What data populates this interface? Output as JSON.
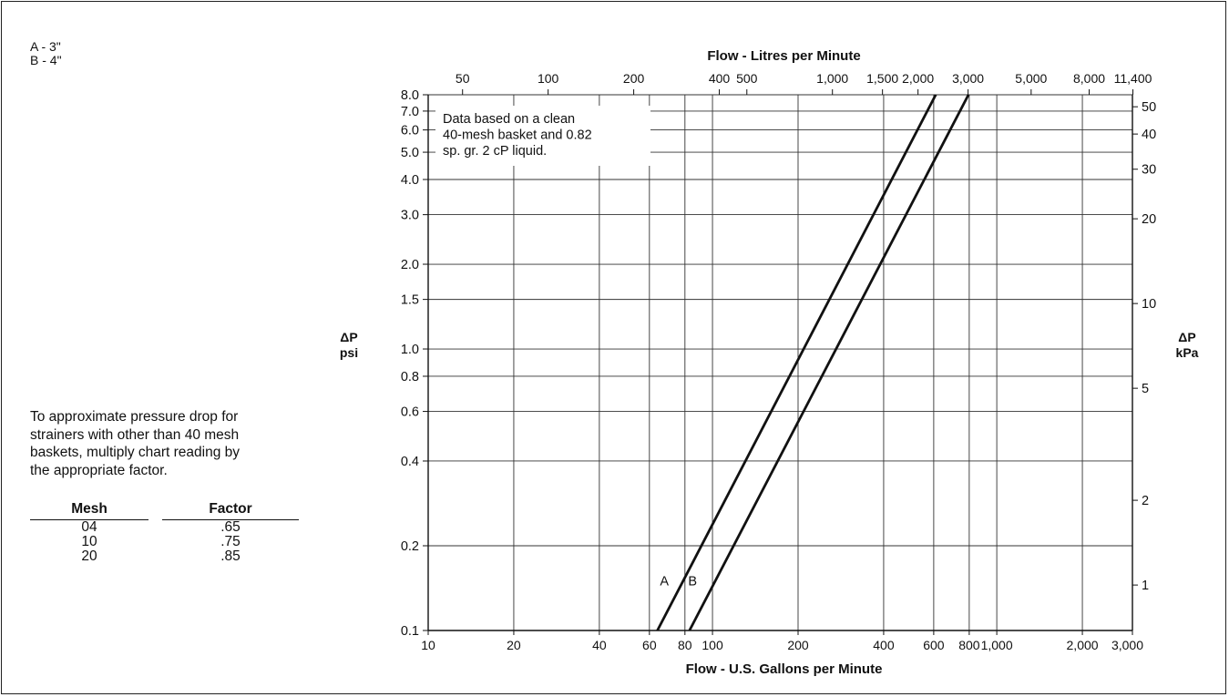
{
  "legend": {
    "items": [
      "A - 3\"",
      "B - 4\""
    ]
  },
  "note": {
    "text_lines": [
      "To approximate pressure drop for",
      "strainers with other than 40 mesh",
      "baskets, multiply chart reading by",
      "the appropriate factor."
    ]
  },
  "factor_table": {
    "headers": [
      "Mesh",
      "Factor"
    ],
    "rows": [
      [
        "04",
        ".65"
      ],
      [
        "10",
        ".75"
      ],
      [
        "20",
        ".85"
      ]
    ]
  },
  "chart_data": {
    "type": "line",
    "title": "",
    "xlabel_bottom": "Flow - U.S. Gallons per Minute",
    "xlabel_top": "Flow - Litres per Minute",
    "ylabel_left": [
      "ΔP",
      "psi"
    ],
    "ylabel_right": [
      "ΔP",
      "kPa"
    ],
    "x_scale": "log",
    "y_scale": "log",
    "xlim": [
      10,
      3000
    ],
    "ylim": [
      0.1,
      8.0
    ],
    "x_ticks": [
      10,
      20,
      40,
      60,
      80,
      100,
      200,
      400,
      600,
      800,
      1000,
      2000,
      3000
    ],
    "x_tick_labels": [
      "10",
      "20",
      "40",
      "60",
      "80",
      "100",
      "200",
      "400",
      "600",
      "800",
      "1,000",
      "2,000",
      "3,000"
    ],
    "y_ticks": [
      0.1,
      0.2,
      0.4,
      0.6,
      0.8,
      1.0,
      1.5,
      2.0,
      3.0,
      4.0,
      5.0,
      6.0,
      7.0,
      8.0
    ],
    "y_tick_labels": [
      "0.1",
      "0.2",
      "0.4",
      "0.6",
      "0.8",
      "1.0",
      "1.5",
      "2.0",
      "3.0",
      "4.0",
      "5.0",
      "6.0",
      "7.0",
      "8.0"
    ],
    "top_ticks": [
      50,
      100,
      200,
      400,
      500,
      1000,
      1500,
      2000,
      3000,
      5000,
      8000,
      11400
    ],
    "top_tick_labels": [
      "50",
      "100",
      "200",
      "400",
      "500",
      "1,000",
      "1,500",
      "2,000",
      "3,000",
      "5,000",
      "8,000",
      "11,400"
    ],
    "right_ticks": [
      1,
      2,
      5,
      10,
      20,
      30,
      40,
      50
    ],
    "right_tick_labels": [
      "1",
      "2",
      "5",
      "10",
      "20",
      "30",
      "40",
      "50"
    ],
    "grid": true,
    "annotation": [
      "Data based on a clean",
      "40-mesh basket and 0.82",
      "sp. gr. 2 cP liquid."
    ],
    "series": [
      {
        "name": "A",
        "x": [
          64,
          610
        ],
        "y": [
          0.1,
          8.0
        ],
        "label_at": [
          74,
          0.15
        ]
      },
      {
        "name": "B",
        "x": [
          83,
          795
        ],
        "y": [
          0.1,
          8.0
        ],
        "label_at": [
          93,
          0.15
        ]
      }
    ]
  }
}
